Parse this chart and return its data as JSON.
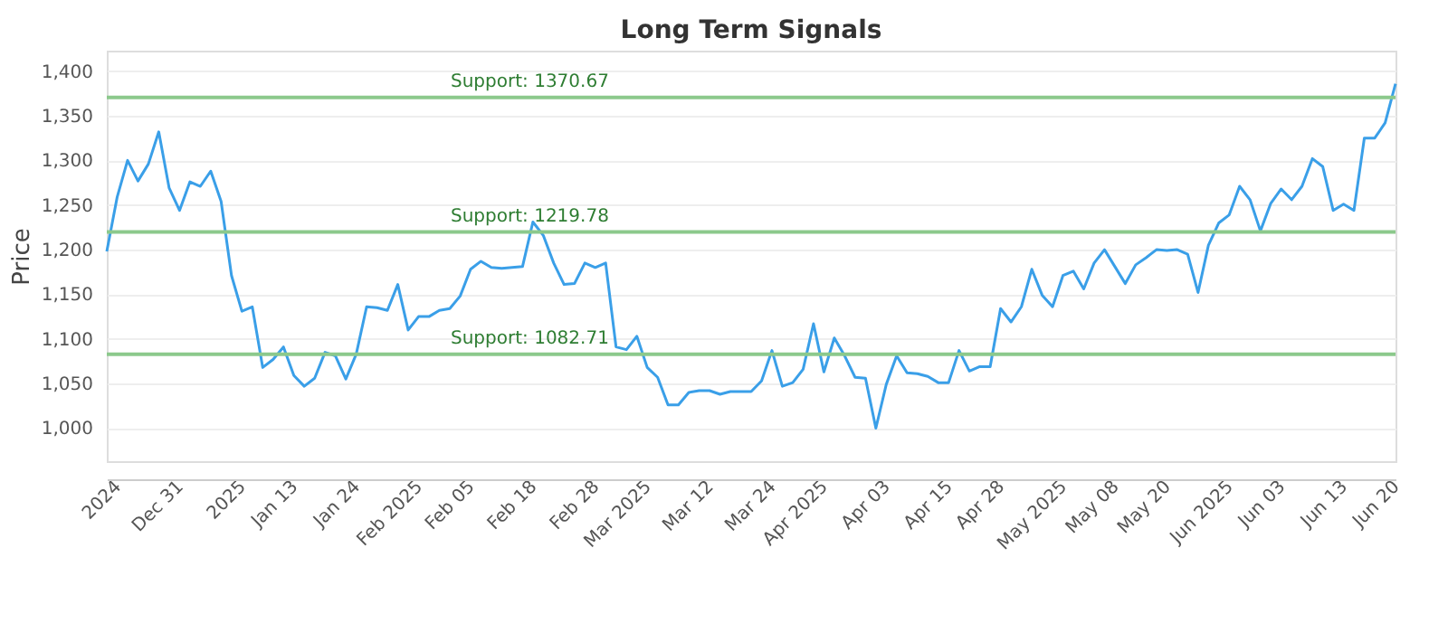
{
  "chart_data": {
    "type": "line",
    "title": "Long Term Signals",
    "ylabel": "Price",
    "categories": [
      null,
      "2024",
      null,
      null,
      null,
      null,
      null,
      "Dec 31",
      null,
      null,
      null,
      null,
      null,
      "2025",
      null,
      null,
      null,
      null,
      "Jan 13",
      null,
      null,
      null,
      null,
      null,
      "Jan 24",
      null,
      null,
      null,
      null,
      null,
      "Feb 2025",
      null,
      null,
      null,
      null,
      "Feb 05",
      null,
      null,
      null,
      null,
      null,
      "Feb 18",
      null,
      null,
      null,
      null,
      null,
      "Feb 28",
      null,
      null,
      null,
      null,
      "Mar 2025",
      null,
      null,
      null,
      null,
      null,
      "Mar 12",
      null,
      null,
      null,
      null,
      null,
      "Mar 24",
      null,
      null,
      null,
      null,
      "Apr 2025",
      null,
      null,
      null,
      null,
      null,
      "Apr 03",
      null,
      null,
      null,
      null,
      null,
      "Apr 15",
      null,
      null,
      null,
      null,
      "Apr 28",
      null,
      null,
      null,
      null,
      null,
      "May 2025",
      null,
      null,
      null,
      null,
      "May 08",
      null,
      null,
      null,
      null,
      "May 20",
      null,
      null,
      null,
      null,
      null,
      "Jun 2025",
      null,
      null,
      null,
      null,
      "Jun 03",
      null,
      null,
      null,
      null,
      null,
      "Jun 13",
      null,
      null,
      null,
      null,
      "Jun 20"
    ],
    "series": [
      {
        "color": "#3a9fe8",
        "values": [
          1198,
          1259,
          1300,
          1277,
          1296,
          1332,
          1269,
          1244,
          1276,
          1271,
          1288,
          1254,
          1171,
          1131,
          1136,
          1068,
          1077,
          1091,
          1059,
          1047,
          1056,
          1085,
          1081,
          1055,
          1083,
          1136,
          1135,
          1132,
          1161,
          1110,
          1125,
          1125,
          1132,
          1134,
          1148,
          1178,
          1187,
          1180,
          1179,
          1180,
          1181,
          1231,
          1216,
          1185,
          1161,
          1162,
          1185,
          1180,
          1185,
          1091,
          1088,
          1103,
          1068,
          1057,
          1026,
          1026,
          1040,
          1042,
          1042,
          1038,
          1041,
          1041,
          1041,
          1053,
          1087,
          1047,
          1051,
          1066,
          1117,
          1063,
          1101,
          1081,
          1057,
          1056,
          1000,
          1049,
          1081,
          1062,
          1061,
          1058,
          1051,
          1051,
          1087,
          1064,
          1069,
          1069,
          1134,
          1119,
          1136,
          1178,
          1149,
          1136,
          1171,
          1176,
          1156,
          1185,
          1200,
          1181,
          1162,
          1183,
          1191,
          1200,
          1199,
          1200,
          1195,
          1152,
          1205,
          1230,
          1239,
          1271,
          1256,
          1221,
          1252,
          1268,
          1256,
          1271,
          1302,
          1293,
          1244,
          1251,
          1244,
          1325,
          1325,
          1342,
          1386
        ]
      }
    ],
    "ylim": [
      963,
      1423
    ],
    "yticks": [
      {
        "value": 1000,
        "label": "1,000"
      },
      {
        "value": 1050,
        "label": "1,050"
      },
      {
        "value": 1100,
        "label": "1,100"
      },
      {
        "value": 1150,
        "label": "1,150"
      },
      {
        "value": 1200,
        "label": "1,200"
      },
      {
        "value": 1250,
        "label": "1,250"
      },
      {
        "value": 1300,
        "label": "1,300"
      },
      {
        "value": 1350,
        "label": "1,350"
      },
      {
        "value": 1400,
        "label": "1,400"
      }
    ],
    "grid": "y",
    "line_style": "solid",
    "marker": "none",
    "ref_lines": [
      {
        "axis": "y",
        "value": 1370.67,
        "label": "Support: 1370.67",
        "color": "#8cc98c"
      },
      {
        "axis": "y",
        "value": 1219.78,
        "label": "Support: 1219.78",
        "color": "#8cc98c"
      },
      {
        "axis": "y",
        "value": 1082.71,
        "label": "Support: 1082.71",
        "color": "#8cc98c"
      }
    ]
  }
}
